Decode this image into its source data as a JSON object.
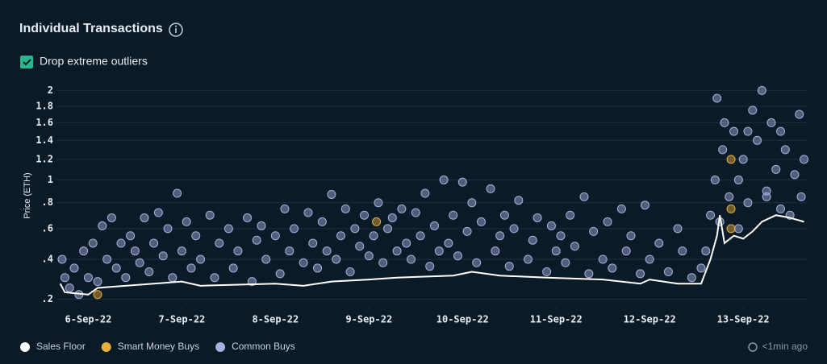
{
  "chart_data": {
    "type": "scatter",
    "title": "Individual Transactions",
    "ylabel": "Price (ETH)",
    "yscale": "sqrt",
    "grid": true,
    "legend": "bottom-left",
    "ylim": [
      0.17,
      2.1
    ],
    "yticks": [
      {
        "value": 0.2,
        "label": ".2"
      },
      {
        "value": 0.4,
        "label": ".4"
      },
      {
        "value": 0.6,
        "label": ".6"
      },
      {
        "value": 0.8,
        "label": ".8"
      },
      1,
      1.2,
      1.4,
      1.6,
      1.8,
      2
    ],
    "xlim": [
      5.66,
      13.68
    ],
    "xticks": [
      {
        "value": 6,
        "label": "6-Sep-22"
      },
      {
        "value": 7,
        "label": "7-Sep-22"
      },
      {
        "value": 8,
        "label": "8-Sep-22"
      },
      {
        "value": 9,
        "label": "9-Sep-22"
      },
      {
        "value": 10,
        "label": "10-Sep-22"
      },
      {
        "value": 11,
        "label": "11-Sep-22"
      },
      {
        "value": 12,
        "label": "12-Sep-22"
      },
      {
        "value": 13,
        "label": "13-Sep-22"
      }
    ],
    "series": [
      {
        "name": "Sales Floor",
        "color": "#ffffff",
        "series_type": "line",
        "x": [
          5.7,
          5.75,
          6.0,
          6.1,
          6.7,
          7.0,
          7.2,
          8.0,
          8.3,
          8.6,
          9.0,
          9.3,
          9.9,
          10.1,
          10.4,
          10.9,
          11.5,
          11.9,
          12.0,
          12.3,
          12.55,
          12.65,
          12.72,
          12.75,
          12.8,
          12.9,
          13.0,
          13.1,
          13.2,
          13.35,
          13.5,
          13.65
        ],
        "values": [
          0.27,
          0.23,
          0.22,
          0.25,
          0.27,
          0.28,
          0.26,
          0.27,
          0.26,
          0.28,
          0.29,
          0.3,
          0.31,
          0.33,
          0.31,
          0.3,
          0.29,
          0.27,
          0.29,
          0.27,
          0.27,
          0.4,
          0.55,
          0.7,
          0.5,
          0.55,
          0.53,
          0.58,
          0.65,
          0.7,
          0.68,
          0.65
        ]
      },
      {
        "name": "Smart Money Buys",
        "color": "#e8b03a",
        "series_type": "points",
        "x": [
          6.1,
          9.08,
          12.87,
          12.87,
          12.87
        ],
        "values": [
          0.22,
          0.65,
          1.2,
          0.75,
          0.6
        ]
      },
      {
        "name": "Common Buys",
        "color": "#a3b2de",
        "series_type": "points",
        "x": [
          5.72,
          5.75,
          5.8,
          5.85,
          5.9,
          5.95,
          6.0,
          6.05,
          6.1,
          6.15,
          6.2,
          6.25,
          6.3,
          6.35,
          6.4,
          6.45,
          6.5,
          6.55,
          6.6,
          6.65,
          6.7,
          6.75,
          6.8,
          6.85,
          6.9,
          6.95,
          7.0,
          7.05,
          7.1,
          7.15,
          7.2,
          7.3,
          7.35,
          7.4,
          7.5,
          7.55,
          7.6,
          7.7,
          7.75,
          7.8,
          7.85,
          7.9,
          8.0,
          8.05,
          8.1,
          8.15,
          8.2,
          8.3,
          8.35,
          8.4,
          8.45,
          8.5,
          8.55,
          8.6,
          8.65,
          8.7,
          8.75,
          8.8,
          8.85,
          8.9,
          8.95,
          9.0,
          9.05,
          9.1,
          9.15,
          9.2,
          9.25,
          9.3,
          9.35,
          9.4,
          9.45,
          9.5,
          9.55,
          9.6,
          9.65,
          9.7,
          9.75,
          9.8,
          9.85,
          9.9,
          9.95,
          10.0,
          10.05,
          10.1,
          10.15,
          10.2,
          10.3,
          10.35,
          10.4,
          10.45,
          10.5,
          10.55,
          10.6,
          10.7,
          10.75,
          10.8,
          10.9,
          10.95,
          11.0,
          11.05,
          11.1,
          11.15,
          11.2,
          11.3,
          11.35,
          11.4,
          11.5,
          11.55,
          11.6,
          11.7,
          11.75,
          11.8,
          11.9,
          11.95,
          12.0,
          12.1,
          12.2,
          12.3,
          12.35,
          12.45,
          12.55,
          12.6,
          12.65,
          12.7,
          12.72,
          12.75,
          12.78,
          12.8,
          12.85,
          12.9,
          12.95,
          13.0,
          13.05,
          13.1,
          13.15,
          13.2,
          13.25,
          13.3,
          13.35,
          13.4,
          13.45,
          13.5,
          13.55,
          13.6,
          13.62,
          13.65,
          13.4,
          13.25,
          13.05,
          12.95
        ],
        "values": [
          0.4,
          0.3,
          0.25,
          0.35,
          0.22,
          0.45,
          0.3,
          0.5,
          0.28,
          0.62,
          0.4,
          0.68,
          0.35,
          0.5,
          0.3,
          0.55,
          0.45,
          0.38,
          0.68,
          0.33,
          0.5,
          0.72,
          0.42,
          0.6,
          0.3,
          0.88,
          0.45,
          0.65,
          0.35,
          0.55,
          0.4,
          0.7,
          0.3,
          0.5,
          0.6,
          0.35,
          0.45,
          0.68,
          0.28,
          0.52,
          0.62,
          0.4,
          0.55,
          0.32,
          0.75,
          0.45,
          0.6,
          0.38,
          0.72,
          0.5,
          0.35,
          0.65,
          0.45,
          0.87,
          0.4,
          0.55,
          0.75,
          0.33,
          0.6,
          0.48,
          0.7,
          0.42,
          0.55,
          0.8,
          0.38,
          0.6,
          0.68,
          0.45,
          0.75,
          0.5,
          0.4,
          0.72,
          0.55,
          0.88,
          0.36,
          0.62,
          0.45,
          1.0,
          0.5,
          0.7,
          0.42,
          0.98,
          0.58,
          0.8,
          0.38,
          0.65,
          0.92,
          0.45,
          0.55,
          0.7,
          0.36,
          0.6,
          0.82,
          0.4,
          0.52,
          0.68,
          0.33,
          0.62,
          0.45,
          0.55,
          0.38,
          0.7,
          0.48,
          0.85,
          0.32,
          0.58,
          0.4,
          0.65,
          0.35,
          0.75,
          0.45,
          0.55,
          0.32,
          0.78,
          0.4,
          0.5,
          0.33,
          0.6,
          0.45,
          0.3,
          0.35,
          0.45,
          0.7,
          1.0,
          1.9,
          0.65,
          1.3,
          1.6,
          0.85,
          1.5,
          1.0,
          1.2,
          0.8,
          1.75,
          1.4,
          2.0,
          0.9,
          1.6,
          1.1,
          0.75,
          1.3,
          0.7,
          1.05,
          1.7,
          0.85,
          1.2,
          1.5,
          0.85,
          1.5,
          0.6
        ]
      }
    ]
  },
  "controls": {
    "checkbox_label": "Drop extreme outliers"
  },
  "status": "<1min ago"
}
